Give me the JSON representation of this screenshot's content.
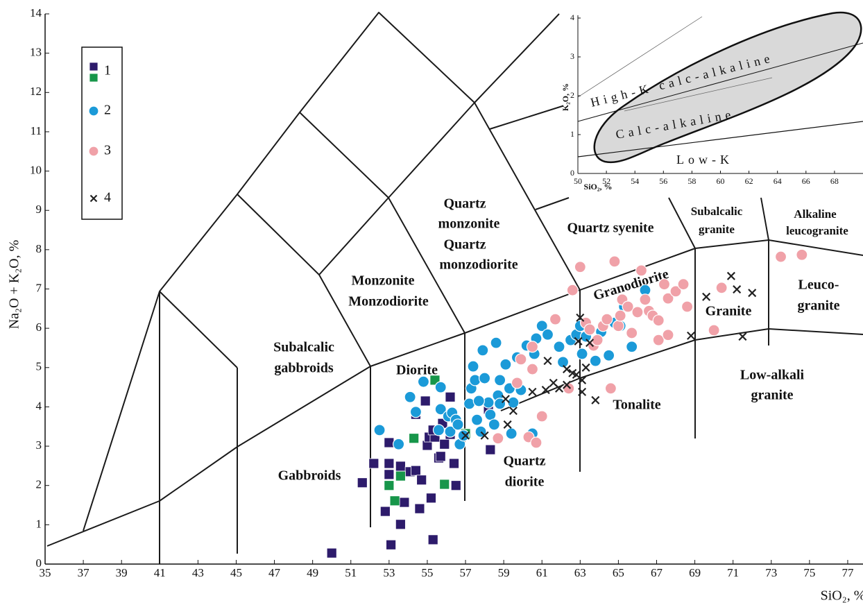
{
  "chart_data": [
    {
      "type": "scatter",
      "xlabel": "SiO₂, %",
      "ylabel": "Na₂O + K₂O, %",
      "xlim": [
        35,
        77.8
      ],
      "ylim": [
        0,
        14
      ],
      "xticks": [
        35,
        37,
        39,
        41,
        43,
        45,
        47,
        49,
        51,
        53,
        55,
        57,
        59,
        61,
        63,
        65,
        67,
        69,
        71,
        73,
        75,
        77
      ],
      "yticks": [
        0,
        1,
        2,
        3,
        4,
        5,
        6,
        7,
        8,
        9,
        10,
        11,
        12,
        13,
        14
      ],
      "legend": "upper left",
      "annotations": [
        "Quartz",
        "monzonite",
        "Quartz",
        "monzodiorite",
        "Quartz syenite",
        "Subalcalic",
        "granite",
        "Alkaline",
        "leucogranite",
        "Monzonite",
        "Monzodiorite",
        "Granodiorite",
        "Leuco-",
        "granite",
        "Granite",
        "Subalcalic",
        "gabbroids",
        "Diorite",
        "Low-alkali",
        "granite",
        "Tonalite",
        "Quartz",
        "diorite",
        "Gabbroids"
      ],
      "series": [
        {
          "name": "1",
          "color": "#2d1b6b",
          "marker": "square",
          "x": [
            50.0,
            51.6,
            52.2,
            52.8,
            53.0,
            53.0,
            53.0,
            53.1,
            53.6,
            53.6,
            53.8,
            54.1,
            54.4,
            54.6,
            54.7,
            55.0,
            55.1,
            55.2,
            55.3,
            55.4,
            55.6,
            55.7,
            55.8,
            55.9,
            56.2,
            56.2,
            56.4,
            56.5,
            54.4,
            54.9,
            55.3,
            58.2,
            58.3
          ],
          "values": [
            0.28,
            2.07,
            2.56,
            1.34,
            3.09,
            2.56,
            2.28,
            0.49,
            1.01,
            2.49,
            1.57,
            2.35,
            2.38,
            1.41,
            2.14,
            3.02,
            3.23,
            1.68,
            0.62,
            3.23,
            2.7,
            2.74,
            3.58,
            3.05,
            4.25,
            3.3,
            2.56,
            2.0,
            3.81,
            4.15,
            3.41,
            3.94,
            2.91
          ]
        },
        {
          "color": "#17964a",
          "marker": "square",
          "x": [
            55.4,
            54.3,
            53.6,
            53.0,
            53.3,
            55.9,
            57.0
          ],
          "values": [
            4.68,
            3.2,
            2.24,
            2.0,
            1.61,
            2.03,
            3.32
          ]
        },
        {
          "name": "2",
          "color": "#1b9ad8",
          "marker": "circle",
          "x": [
            52.5,
            53.5,
            54.1,
            54.4,
            54.8,
            55.7,
            55.7,
            56.1,
            56.3,
            56.5,
            55.6,
            56.2,
            56.7,
            56.9,
            57.2,
            57.3,
            57.4,
            57.5,
            57.6,
            57.8,
            57.9,
            58.0,
            58.2,
            58.3,
            58.5,
            58.6,
            58.7,
            58.8,
            58.8,
            59.1,
            59.3,
            59.7,
            59.9,
            60.2,
            60.6,
            60.7,
            61.0,
            61.3,
            61.9,
            62.1,
            62.5,
            62.8,
            63.0,
            63.1,
            63.3,
            63.8,
            64.1,
            64.5,
            64.8,
            65.1,
            65.3,
            65.7,
            66.4,
            56.6,
            57.7,
            59.5,
            59.4,
            60.5
          ],
          "values": [
            3.41,
            3.05,
            4.25,
            3.87,
            4.64,
            4.5,
            3.94,
            3.76,
            3.85,
            3.67,
            3.41,
            3.37,
            3.05,
            3.27,
            4.08,
            4.47,
            5.03,
            4.68,
            3.67,
            3.37,
            5.44,
            4.73,
            4.11,
            3.8,
            3.55,
            5.63,
            4.29,
            4.68,
            4.08,
            5.08,
            4.47,
            5.26,
            4.43,
            5.56,
            5.35,
            5.74,
            6.06,
            5.84,
            5.53,
            5.14,
            5.7,
            5.84,
            6.06,
            5.35,
            5.79,
            5.17,
            5.91,
            5.31,
            6.14,
            6.06,
            6.55,
            5.53,
            6.97,
            3.55,
            4.15,
            4.11,
            3.32,
            3.32
          ]
        },
        {
          "name": "3",
          "color": "#f0a1a8",
          "marker": "circle",
          "x": [
            58.7,
            59.7,
            59.9,
            60.5,
            60.5,
            60.3,
            60.7,
            61.0,
            61.7,
            62.4,
            62.6,
            63.0,
            63.3,
            63.5,
            63.7,
            63.9,
            64.2,
            64.4,
            64.6,
            64.8,
            65.0,
            65.1,
            65.2,
            65.5,
            65.7,
            66.0,
            66.2,
            66.4,
            66.6,
            66.8,
            67.1,
            67.1,
            67.4,
            67.6,
            68.0,
            68.4,
            68.6,
            70.0,
            70.4,
            73.5,
            74.6,
            67.6
          ],
          "values": [
            3.2,
            4.61,
            5.21,
            4.96,
            5.53,
            3.23,
            3.09,
            3.76,
            6.23,
            4.47,
            6.97,
            7.56,
            6.14,
            5.97,
            5.56,
            5.7,
            6.06,
            6.23,
            4.47,
            7.7,
            6.06,
            6.32,
            6.73,
            6.55,
            5.88,
            6.41,
            7.47,
            6.73,
            6.44,
            6.32,
            6.2,
            5.7,
            7.12,
            6.76,
            6.94,
            7.12,
            6.55,
            5.95,
            7.03,
            7.82,
            7.87,
            5.83
          ]
        },
        {
          "name": "4",
          "color": "#222222",
          "marker": "x",
          "x": [
            57.0,
            58.0,
            59.1,
            59.2,
            59.5,
            60.5,
            61.3,
            61.2,
            61.6,
            61.9,
            62.3,
            62.3,
            62.6,
            62.8,
            62.9,
            63.0,
            63.1,
            63.1,
            63.3,
            63.5,
            63.8,
            68.8,
            69.6,
            70.9,
            71.2,
            71.5,
            72.0
          ],
          "values": [
            3.27,
            3.27,
            4.2,
            3.55,
            3.9,
            4.38,
            5.17,
            4.43,
            4.61,
            4.47,
            4.96,
            4.56,
            4.86,
            4.82,
            5.67,
            6.27,
            4.38,
            4.68,
            5.0,
            5.63,
            4.17,
            5.81,
            6.8,
            7.33,
            6.99,
            5.79,
            6.9
          ]
        }
      ]
    },
    {
      "type": "line",
      "xlabel": "SiO₂, %",
      "ylabel": "K₂O, %",
      "xlim": [
        50,
        70
      ],
      "ylim": [
        0,
        4
      ],
      "xticks": [
        50,
        52,
        54,
        56,
        58,
        60,
        62,
        64,
        66,
        68
      ],
      "yticks": [
        0,
        1,
        2,
        3,
        4
      ],
      "annotations": [
        "High-K calc-alkaline",
        "Calc-alkaline",
        "Low-K"
      ]
    }
  ]
}
